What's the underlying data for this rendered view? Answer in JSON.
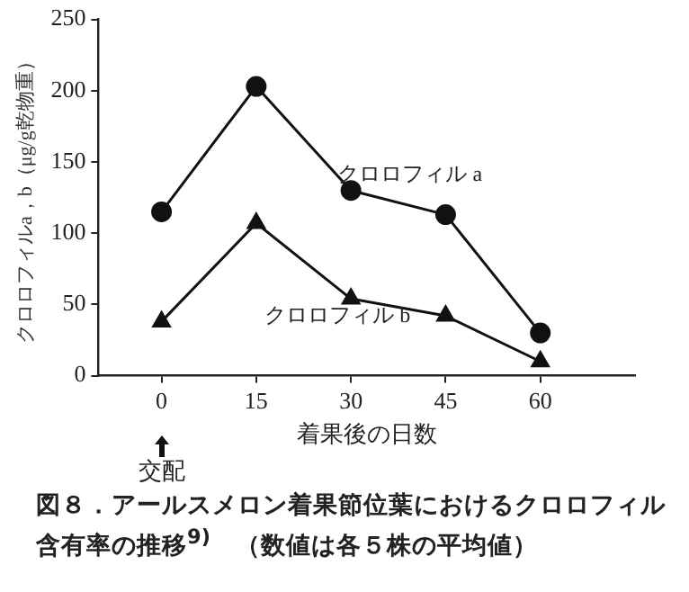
{
  "chart_data": {
    "type": "line",
    "title": "図８．アールスメロン着果節位葉におけるクロロフィル含有率の推移$^{9)}$　（数値は各５株の平均値）",
    "xlabel": "着果後の日数",
    "ylabel": "クロロフィルa，b（μg/g乾物重）",
    "x": [
      0,
      15,
      30,
      45,
      60
    ],
    "series": [
      {
        "name": "クロロフィル a",
        "color": "#111111",
        "marker": "circle",
        "values": [
          115,
          203,
          130,
          113,
          30
        ]
      },
      {
        "name": "クロロフィル b",
        "color": "#111111",
        "marker": "triangle",
        "values": [
          38,
          107,
          54,
          42,
          10
        ]
      }
    ],
    "xlim": [
      -10,
      75
    ],
    "xticks": [
      0,
      15,
      30,
      45,
      60
    ],
    "ylim": [
      0,
      250
    ],
    "yticks": [
      0,
      50,
      100,
      150,
      200,
      250
    ],
    "grid": false,
    "legend": false,
    "line_style": "solid",
    "annotations": [
      "交配"
    ]
  }
}
